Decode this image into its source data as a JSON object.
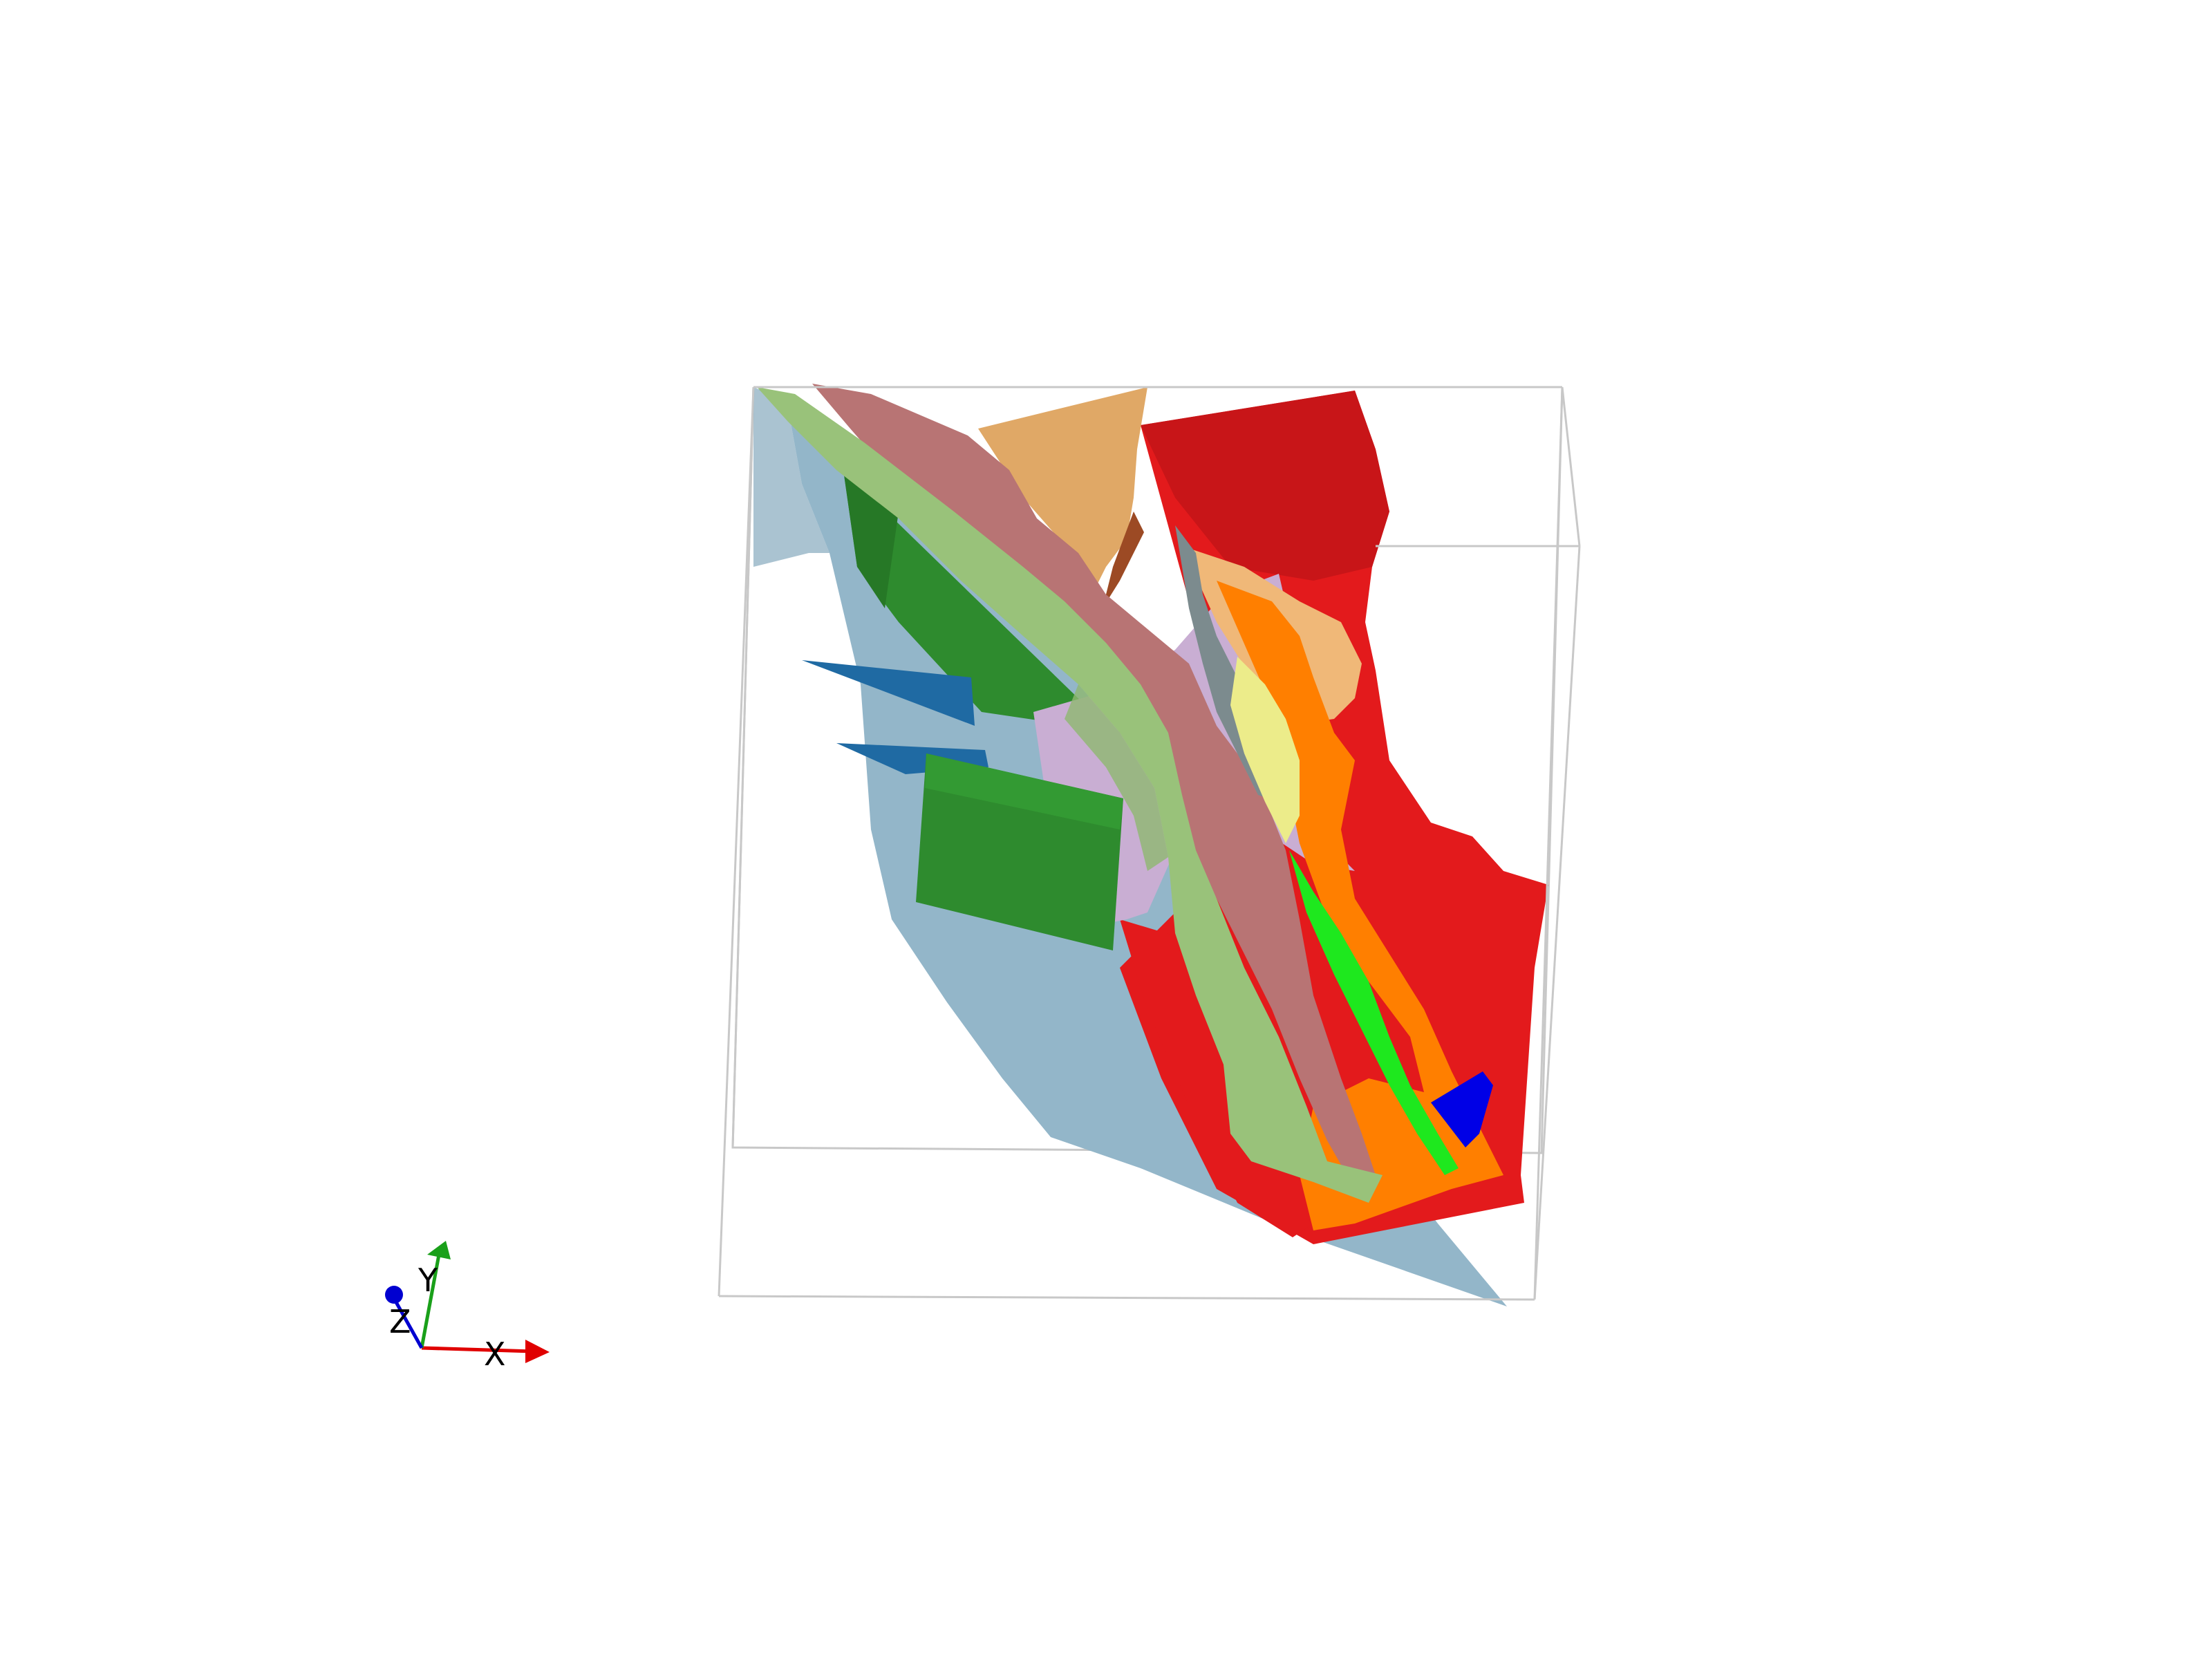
{
  "scene": {
    "background": "#ffffff",
    "bounding_box_color": "#c8c8c8"
  },
  "surfaces": [
    {
      "id": "surface-light-blue",
      "color": "#93b6c9"
    },
    {
      "id": "surface-dark-green",
      "color": "#2e8b2e"
    },
    {
      "id": "surface-steel-blue",
      "color": "#1f6aa3"
    },
    {
      "id": "surface-red",
      "color": "#e31a1c"
    },
    {
      "id": "surface-tan",
      "color": "#e0a866"
    },
    {
      "id": "surface-rose",
      "color": "#b87474"
    },
    {
      "id": "surface-lavender",
      "color": "#c9aed3"
    },
    {
      "id": "surface-olive-green",
      "color": "#99c27a"
    },
    {
      "id": "surface-orange",
      "color": "#ff7f00"
    },
    {
      "id": "surface-pale-yellow",
      "color": "#ecec8a"
    },
    {
      "id": "surface-slate-gray",
      "color": "#7c8b8e"
    },
    {
      "id": "surface-bright-green",
      "color": "#1ee81e"
    },
    {
      "id": "surface-blue",
      "color": "#0000e6"
    }
  ],
  "axes_widget": {
    "x_label": "X",
    "y_label": "Y",
    "z_label": "Z",
    "x_color": "#e00000",
    "y_color": "#1aa01a",
    "z_color": "#0000d0"
  }
}
